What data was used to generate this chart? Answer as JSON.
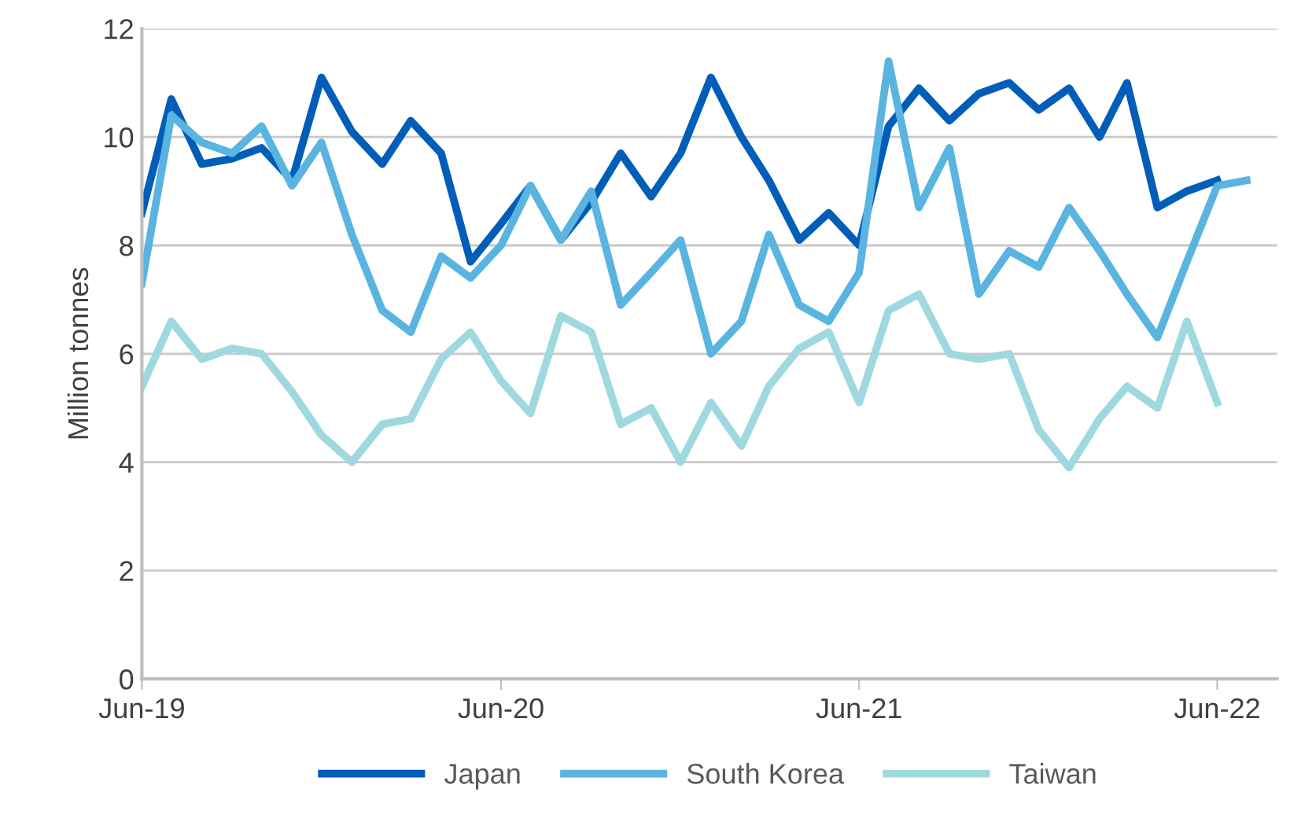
{
  "chart_data": {
    "type": "line",
    "ylabel": "Million tonnes",
    "ylim": [
      0,
      12
    ],
    "yticks": [
      0,
      2,
      4,
      6,
      8,
      10,
      12
    ],
    "xlim": [
      "2019-06",
      "2022-08"
    ],
    "xticks": [
      {
        "value": "2019-06",
        "label": "Jun-19"
      },
      {
        "value": "2020-06",
        "label": "Jun-20"
      },
      {
        "value": "2021-06",
        "label": "Jun-21"
      },
      {
        "value": "2022-06",
        "label": "Jun-22"
      }
    ],
    "grid": "y",
    "legend": "bottom",
    "marker": "none",
    "line_style": "solid",
    "series": [
      {
        "name": "Japan",
        "color": "#005eb8",
        "values": [
          8.6,
          10.7,
          9.5,
          9.6,
          9.8,
          9.2,
          11.1,
          10.1,
          9.5,
          10.3,
          9.7,
          7.7,
          8.4,
          9.1,
          8.1,
          8.8,
          9.7,
          8.9,
          9.7,
          11.1,
          10.0,
          9.2,
          8.1,
          8.6,
          8.0,
          10.2,
          10.9,
          10.3,
          10.8,
          11.0,
          10.5,
          10.9,
          10.0,
          11.0,
          8.7,
          9.0,
          9.2,
          null
        ]
      },
      {
        "name": "South Korea",
        "color": "#5ab4e0",
        "values": [
          7.3,
          10.4,
          9.9,
          9.7,
          10.2,
          9.1,
          9.9,
          8.2,
          6.8,
          6.4,
          7.8,
          7.4,
          8.0,
          9.1,
          8.1,
          9.0,
          6.9,
          7.5,
          8.1,
          6.0,
          6.6,
          8.2,
          6.9,
          6.6,
          7.5,
          11.4,
          8.7,
          9.8,
          7.1,
          7.9,
          7.6,
          8.7,
          7.9,
          7.1,
          6.3,
          7.7,
          9.1,
          9.2
        ]
      },
      {
        "name": "Taiwan",
        "color": "#9fd9df",
        "values": [
          5.4,
          6.6,
          5.9,
          6.1,
          6.0,
          5.3,
          4.5,
          4.0,
          4.7,
          4.8,
          5.9,
          6.4,
          5.5,
          4.9,
          6.7,
          6.4,
          4.7,
          5.0,
          4.0,
          5.1,
          4.3,
          5.4,
          6.1,
          6.4,
          5.1,
          6.8,
          7.1,
          6.0,
          5.9,
          6.0,
          4.6,
          3.9,
          4.8,
          5.4,
          5.0,
          6.6,
          5.1,
          null
        ]
      }
    ],
    "x": [
      "2019-06",
      "2019-07",
      "2019-08",
      "2019-09",
      "2019-10",
      "2019-11",
      "2019-12",
      "2020-01",
      "2020-02",
      "2020-03",
      "2020-04",
      "2020-05",
      "2020-06",
      "2020-07",
      "2020-08",
      "2020-09",
      "2020-10",
      "2020-11",
      "2020-12",
      "2021-01",
      "2021-02",
      "2021-03",
      "2021-04",
      "2021-05",
      "2021-06",
      "2021-07",
      "2021-08",
      "2021-09",
      "2021-10",
      "2021-11",
      "2021-12",
      "2022-01",
      "2022-02",
      "2022-03",
      "2022-04",
      "2022-05",
      "2022-06",
      "2022-07"
    ]
  }
}
